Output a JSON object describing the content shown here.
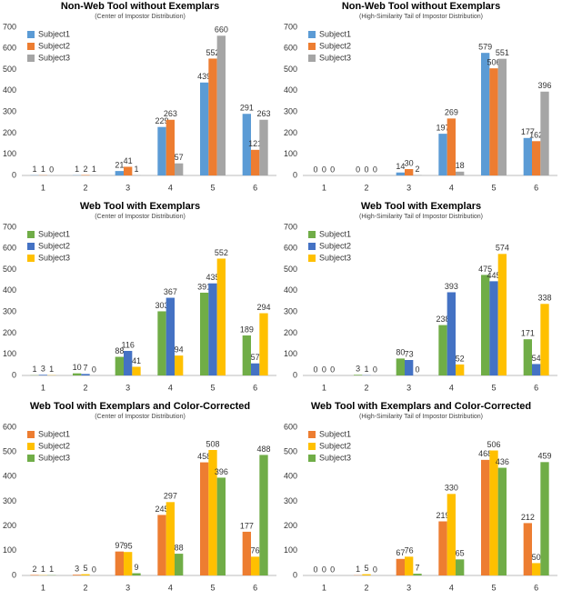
{
  "chart_data": [
    {
      "type": "bar",
      "title": "Non-Web Tool without Exemplars",
      "subtitle": "(Center of Impostor Distribution)",
      "categories": [
        "1",
        "2",
        "3",
        "4",
        "5",
        "6"
      ],
      "series": [
        {
          "name": "Subject1",
          "color": "#5b9bd5",
          "values": [
            1,
            1,
            21,
            229,
            439,
            291
          ]
        },
        {
          "name": "Subject2",
          "color": "#ed7d31",
          "values": [
            1,
            2,
            41,
            263,
            552,
            121
          ]
        },
        {
          "name": "Subject3",
          "color": "#a5a5a5",
          "values": [
            0,
            1,
            1,
            57,
            660,
            263
          ]
        }
      ],
      "ylim": [
        0,
        700
      ],
      "yticks": [
        0,
        100,
        200,
        300,
        400,
        500,
        600,
        700
      ],
      "grid": false,
      "legend": "upper left"
    },
    {
      "type": "bar",
      "title": "Non-Web Tool without Exemplars",
      "subtitle": "(High-Similarity Tail of Impostor Distribution)",
      "categories": [
        "1",
        "2",
        "3",
        "4",
        "5",
        "6"
      ],
      "series": [
        {
          "name": "Subject1",
          "color": "#5b9bd5",
          "values": [
            0,
            0,
            14,
            197,
            579,
            177
          ]
        },
        {
          "name": "Subject2",
          "color": "#ed7d31",
          "values": [
            0,
            0,
            30,
            269,
            506,
            162
          ]
        },
        {
          "name": "Subject3",
          "color": "#a5a5a5",
          "values": [
            0,
            0,
            2,
            18,
            551,
            396
          ]
        }
      ],
      "ylim": [
        0,
        700
      ],
      "yticks": [
        0,
        100,
        200,
        300,
        400,
        500,
        600,
        700
      ],
      "grid": false,
      "legend": "upper left"
    },
    {
      "type": "bar",
      "title": "Web Tool with Exemplars",
      "subtitle": "(Center of Impostor Distribution)",
      "categories": [
        "1",
        "2",
        "3",
        "4",
        "5",
        "6"
      ],
      "series": [
        {
          "name": "Subject1",
          "color": "#70ad47",
          "values": [
            1,
            10,
            88,
            303,
            391,
            189
          ]
        },
        {
          "name": "Subject2",
          "color": "#4472c4",
          "values": [
            3,
            7,
            116,
            367,
            435,
            57
          ]
        },
        {
          "name": "Subject3",
          "color": "#ffc000",
          "values": [
            1,
            0,
            41,
            94,
            552,
            294
          ]
        }
      ],
      "ylim": [
        0,
        700
      ],
      "yticks": [
        0,
        100,
        200,
        300,
        400,
        500,
        600,
        700
      ],
      "grid": false,
      "legend": "upper left"
    },
    {
      "type": "bar",
      "title": "Web Tool with Exemplars",
      "subtitle": "(High-Similarity Tail of Impostor Distribution)",
      "categories": [
        "1",
        "2",
        "3",
        "4",
        "5",
        "6"
      ],
      "series": [
        {
          "name": "Subject1",
          "color": "#70ad47",
          "values": [
            0,
            3,
            80,
            238,
            475,
            171
          ]
        },
        {
          "name": "Subject2",
          "color": "#4472c4",
          "values": [
            0,
            1,
            73,
            393,
            445,
            54
          ]
        },
        {
          "name": "Subject3",
          "color": "#ffc000",
          "values": [
            0,
            0,
            0,
            52,
            574,
            338
          ]
        }
      ],
      "ylim": [
        0,
        700
      ],
      "yticks": [
        0,
        100,
        200,
        300,
        400,
        500,
        600,
        700
      ],
      "grid": false,
      "legend": "upper left"
    },
    {
      "type": "bar",
      "title": "Web Tool with Exemplars and Color-Corrected",
      "subtitle": "(Center of Impostor Distribution)",
      "categories": [
        "1",
        "2",
        "3",
        "4",
        "5",
        "6"
      ],
      "series": [
        {
          "name": "Subject1",
          "color": "#ed7d31",
          "values": [
            2,
            3,
            97,
            245,
            458,
            177
          ]
        },
        {
          "name": "Subject2",
          "color": "#ffc000",
          "values": [
            1,
            5,
            95,
            297,
            508,
            76
          ]
        },
        {
          "name": "Subject3",
          "color": "#70ad47",
          "values": [
            1,
            0,
            9,
            88,
            396,
            488
          ]
        }
      ],
      "ylim": [
        0,
        600
      ],
      "yticks": [
        0,
        100,
        200,
        300,
        400,
        500,
        600
      ],
      "grid": false,
      "legend": "upper left"
    },
    {
      "type": "bar",
      "title": "Web Tool with Exemplars and Color-Corrected",
      "subtitle": "(High-Similarity Tail of Impostor Distribution)",
      "categories": [
        "1",
        "2",
        "3",
        "4",
        "5",
        "6"
      ],
      "series": [
        {
          "name": "Subject1",
          "color": "#ed7d31",
          "values": [
            0,
            1,
            67,
            219,
            468,
            212
          ]
        },
        {
          "name": "Subject2",
          "color": "#ffc000",
          "values": [
            0,
            5,
            76,
            330,
            506,
            50
          ]
        },
        {
          "name": "Subject3",
          "color": "#70ad47",
          "values": [
            0,
            0,
            7,
            65,
            436,
            459
          ]
        }
      ],
      "ylim": [
        0,
        600
      ],
      "yticks": [
        0,
        100,
        200,
        300,
        400,
        500,
        600
      ],
      "grid": false,
      "legend": "upper left"
    }
  ]
}
